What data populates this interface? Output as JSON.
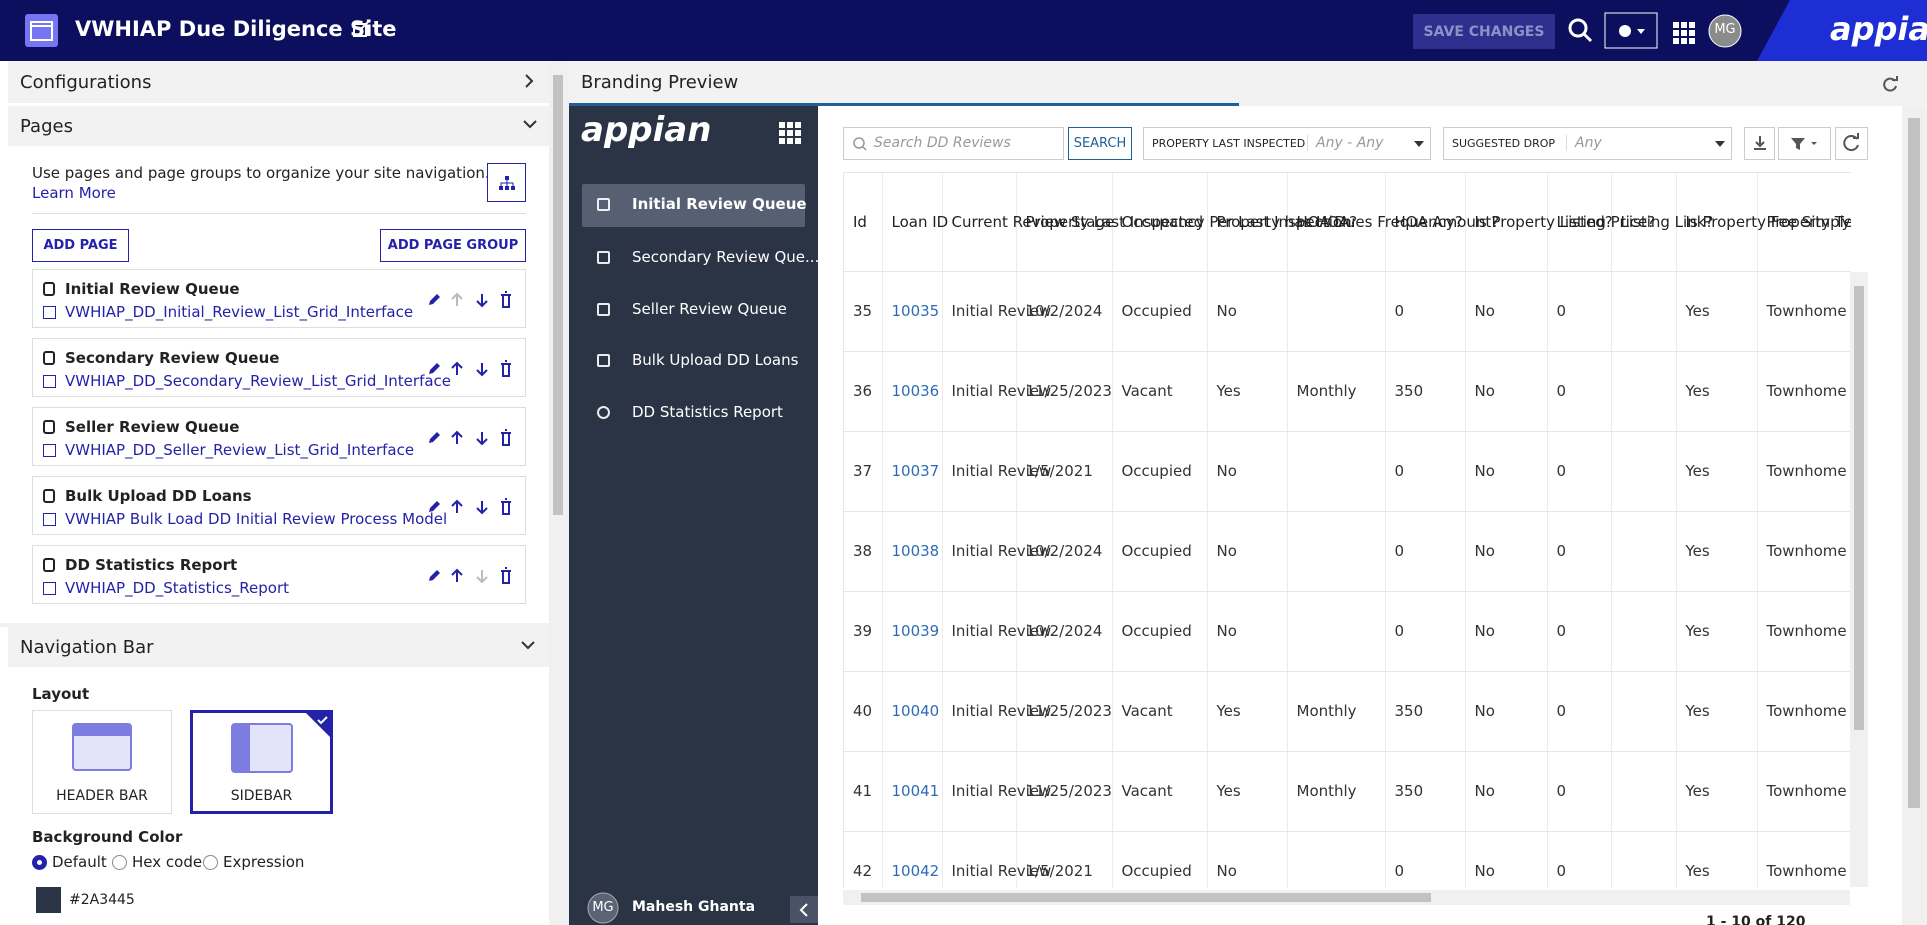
{
  "header": {
    "title": "VWHIAP Due Diligence Site",
    "save_button": "SAVE CHANGES",
    "avatar": "MG",
    "brand": "appian"
  },
  "left_panel": {
    "configurations": "Configurations",
    "pages": {
      "title": "Pages",
      "description": "Use pages and page groups to organize your site navigation.",
      "learn_more": "Learn More",
      "add_page": "ADD PAGE",
      "add_page_group": "ADD PAGE GROUP",
      "items": [
        {
          "name": "Initial Review Queue",
          "link": "VWHIAP_DD_Initial_Review_List_Grid_Interface"
        },
        {
          "name": "Secondary Review Queue",
          "link": "VWHIAP_DD_Secondary_Review_List_Grid_Interface"
        },
        {
          "name": "Seller Review Queue",
          "link": "VWHIAP_DD_Seller_Review_List_Grid_Interface"
        },
        {
          "name": "Bulk Upload DD Loans",
          "link": "VWHIAP Bulk Load DD Initial Review Process Model"
        },
        {
          "name": "DD Statistics Report",
          "link": "VWHIAP_DD_Statistics_Report"
        }
      ]
    },
    "navigation_bar": {
      "title": "Navigation Bar",
      "layout_label": "Layout",
      "layouts": [
        "HEADER BAR",
        "SIDEBAR"
      ],
      "background_label": "Background Color",
      "options": [
        "Default",
        "Hex code",
        "Expression"
      ],
      "hex": "#2A3445"
    }
  },
  "preview": {
    "title": "Branding Preview",
    "logo": "appian",
    "nav": [
      "Initial Review Queue",
      "Secondary Review Que...",
      "Seller Review Queue",
      "Bulk Upload DD Loans",
      "DD Statistics Report"
    ],
    "user": {
      "initials": "MG",
      "name": "Mahesh Ghanta"
    },
    "search_placeholder": "Search DD Reviews",
    "search_button": "SEARCH",
    "filters": [
      {
        "label": "PROPERTY LAST INSPECTED",
        "value": "Any - Any"
      },
      {
        "label": "SUGGESTED DROP",
        "value": "Any"
      }
    ],
    "table": {
      "columns": [
        "Id",
        "Loan ID",
        "Current Review Stage",
        "Property Last Inspected",
        "Occupancy Per Last Inspection",
        "Property has HOA?",
        "HOA Dues Frequency?",
        "HOA Amount?",
        "Is Property Listed?",
        "Listing Price?",
        "Listing Link?",
        "Is Property Fee Simple?",
        "Property Type?"
      ],
      "rows": [
        [
          35,
          "10035",
          "Initial Review",
          "10/2/2024",
          "Occupied",
          "No",
          null,
          0,
          "No",
          0,
          null,
          "Yes",
          "Townhome"
        ],
        [
          36,
          "10036",
          "Initial Review",
          "11/25/2023",
          "Vacant",
          "Yes",
          "Monthly",
          350,
          "No",
          0,
          null,
          "Yes",
          "Townhome"
        ],
        [
          37,
          "10037",
          "Initial Review",
          "1/5/2021",
          "Occupied",
          "No",
          null,
          0,
          "No",
          0,
          null,
          "Yes",
          "Townhome"
        ],
        [
          38,
          "10038",
          "Initial Review",
          "10/2/2024",
          "Occupied",
          "No",
          null,
          0,
          "No",
          0,
          null,
          "Yes",
          "Townhome"
        ],
        [
          39,
          "10039",
          "Initial Review",
          "10/2/2024",
          "Occupied",
          "No",
          null,
          0,
          "No",
          0,
          null,
          "Yes",
          "Townhome"
        ],
        [
          40,
          "10040",
          "Initial Review",
          "11/25/2023",
          "Vacant",
          "Yes",
          "Monthly",
          350,
          "No",
          0,
          null,
          "Yes",
          "Townhome"
        ],
        [
          41,
          "10041",
          "Initial Review",
          "11/25/2023",
          "Vacant",
          "Yes",
          "Monthly",
          350,
          "No",
          0,
          null,
          "Yes",
          "Townhome"
        ],
        [
          42,
          "10042",
          "Initial Review",
          "1/5/2021",
          "Occupied",
          "No",
          null,
          0,
          "No",
          0,
          null,
          "Yes",
          "Townhome"
        ]
      ]
    },
    "pagination": "1 - 10 of 120"
  }
}
